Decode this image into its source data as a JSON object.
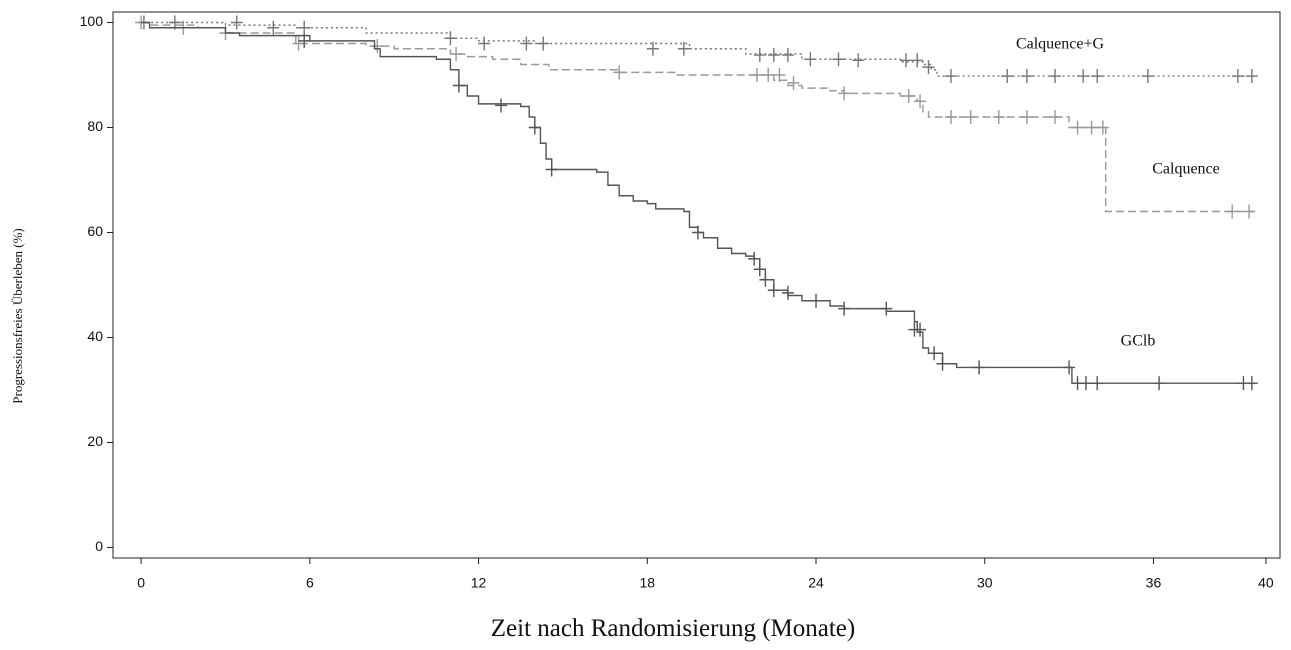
{
  "chart_data": {
    "type": "step",
    "xlabel": "Zeit nach Randomisierung (Monate)",
    "ylabel": "Progressionsfreies Überleben (%)",
    "xlim": [
      -1,
      40.5
    ],
    "ylim": [
      -2,
      102
    ],
    "xticks": [
      0,
      6,
      12,
      18,
      24,
      30,
      36,
      40
    ],
    "yticks": [
      0,
      20,
      40,
      60,
      80,
      100
    ],
    "series": [
      {
        "name": "Calquence+G",
        "color": "#777777",
        "linestyle": "dotted",
        "x": [
          0,
          3,
          5.5,
          8,
          11,
          12,
          14,
          19.5,
          21.5,
          23.5,
          27,
          27.8,
          28.1,
          28.3,
          39.6
        ],
        "values": [
          100,
          99.5,
          99,
          98,
          97,
          96.5,
          96,
          95,
          94,
          93,
          92.5,
          92,
          91,
          89.8,
          89.8
        ],
        "censored": {
          "x": [
            0.1,
            1.2,
            3.4,
            4.7,
            5.8,
            11,
            12.2,
            13.7,
            14.3,
            18.2,
            19.3,
            22,
            22.5,
            23,
            23.8,
            24.8,
            25.5,
            27.2,
            27.6,
            28,
            28.8,
            30.8,
            31.5,
            32.5,
            33.5,
            34,
            35.8,
            39,
            39.5
          ],
          "values": [
            100,
            100,
            100,
            99,
            99,
            97,
            96,
            96,
            96,
            95,
            95,
            93.8,
            93.8,
            93.8,
            93,
            93,
            92.8,
            92.8,
            92.8,
            91.5,
            89.8,
            89.8,
            89.8,
            89.8,
            89.8,
            89.8,
            89.8,
            89.8,
            89.8
          ]
        }
      },
      {
        "name": "Calquence",
        "color": "#999999",
        "linestyle": "dashed",
        "x": [
          0,
          0.3,
          2,
          3,
          5.5,
          8,
          9,
          11,
          11.5,
          12.5,
          13.5,
          14.5,
          17,
          19,
          22.5,
          23,
          23.5,
          24.5,
          25,
          27,
          27.6,
          27.8,
          28,
          33,
          34.3,
          39.6
        ],
        "values": [
          100,
          99.5,
          99,
          98,
          96,
          95.5,
          95,
          94,
          93.5,
          93,
          92,
          91,
          90.5,
          90,
          89,
          88,
          87.5,
          87,
          86.5,
          86,
          85,
          83,
          82,
          80,
          64,
          64
        ],
        "censored": {
          "x": [
            0,
            1.5,
            3,
            5.6,
            8.4,
            11.2,
            17,
            21.9,
            22.3,
            22.7,
            23.2,
            25,
            27.3,
            27.7,
            28.8,
            29.5,
            30.5,
            31.5,
            32.5,
            33.3,
            33.8,
            34.2,
            38.8,
            39.4
          ],
          "values": [
            100,
            99,
            98,
            96,
            95.5,
            94,
            90.5,
            90,
            90,
            90,
            88.5,
            86.5,
            86,
            85,
            82,
            82,
            82,
            82,
            82,
            80,
            80,
            80,
            64,
            64
          ]
        }
      },
      {
        "name": "GClb",
        "color": "#555555",
        "linestyle": "solid",
        "x": [
          0,
          0.3,
          3,
          3.5,
          6,
          8.3,
          8.5,
          10.5,
          11,
          11.3,
          11.6,
          12,
          13.5,
          13.8,
          14,
          14.2,
          14.4,
          14.6,
          16.2,
          16.6,
          17,
          17.5,
          18,
          18.3,
          19.3,
          19.5,
          19.8,
          20,
          20.5,
          21,
          21.5,
          21.8,
          22,
          22.2,
          22.5,
          23,
          23.5,
          24.5,
          25,
          26.5,
          27.5,
          27.6,
          27.8,
          28,
          28.5,
          29,
          33.1,
          39.6
        ],
        "values": [
          100,
          99,
          98,
          97.5,
          96.5,
          95,
          93.5,
          93,
          91,
          88,
          86,
          84.5,
          84,
          82,
          80,
          77,
          74,
          72,
          71.5,
          69,
          67,
          66,
          65.5,
          64.5,
          64,
          61,
          60,
          59,
          57,
          56,
          55.5,
          55,
          53,
          51,
          49,
          48,
          47,
          46,
          45.5,
          45,
          43,
          41,
          38,
          37,
          35,
          34.3,
          31.3,
          31.3
        ],
        "censored": {
          "x": [
            5.8,
            11.3,
            12.8,
            14,
            14.6,
            19.8,
            21.8,
            22,
            22.2,
            22.5,
            23,
            24,
            25,
            26.5,
            27.5,
            27.7,
            28.2,
            28.5,
            29.8,
            33,
            33.3,
            33.6,
            34,
            36.2,
            39.2,
            39.5
          ],
          "values": [
            96.5,
            88,
            84.2,
            80,
            72,
            60,
            55,
            53,
            51,
            49,
            48.5,
            47,
            45.5,
            45.5,
            41.5,
            41.5,
            37,
            35,
            34.3,
            34.3,
            31.3,
            31.3,
            31.3,
            31.3,
            31.3,
            31.3
          ]
        }
      }
    ]
  }
}
